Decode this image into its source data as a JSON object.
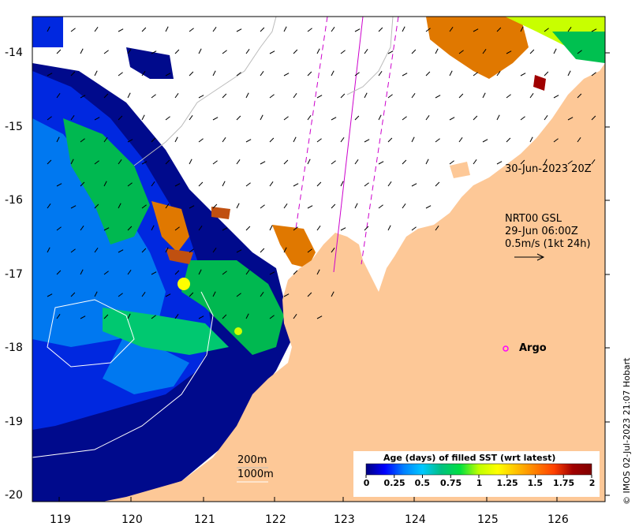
{
  "x_ticks": [
    "119",
    "120",
    "121",
    "122",
    "123",
    "124",
    "125",
    "126"
  ],
  "y_ticks": [
    "-14",
    "-15",
    "-16",
    "-17",
    "-18",
    "-19",
    "-20"
  ],
  "annotations": {
    "track_time": "30-Jun-2023 20Z",
    "currents_source": "NRT00 GSL",
    "currents_time": "29-Jun 06:00Z",
    "currents_scale": "0.5m/s (1kt 24h)",
    "argo": "Argo",
    "contour_200": "200m",
    "contour_1000": "1000m"
  },
  "colorbar": {
    "title": "Age (days) of filled SST (wrt latest)",
    "ticks": [
      "0",
      "0.25",
      "0.5",
      "0.75",
      "1",
      "1.25",
      "1.5",
      "1.75",
      "2"
    ],
    "colors": [
      "#000080",
      "#0000ff",
      "#0080ff",
      "#00c8ff",
      "#00c080",
      "#00e040",
      "#c0ff00",
      "#ffff00",
      "#ffc000",
      "#ff8000",
      "#ff4000",
      "#a00000",
      "#800000"
    ]
  },
  "credit": "© IMOS 02-Jul-2023 21:07 Hobart",
  "colors": {
    "land": "#fdc897",
    "argo": "#ff00ff",
    "track": "#cc00cc"
  }
}
